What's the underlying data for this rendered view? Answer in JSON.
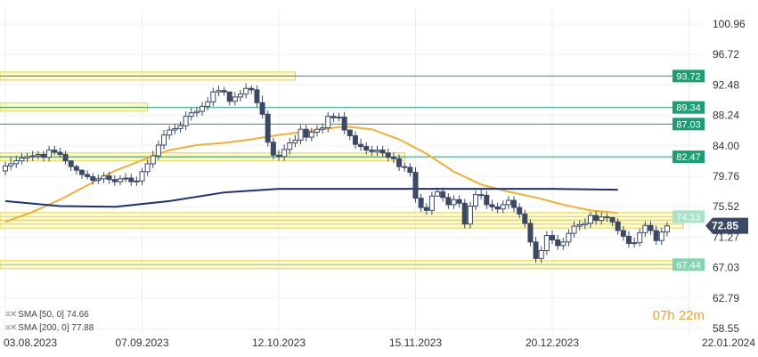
{
  "chart_data": {
    "type": "candlestick",
    "y_ticks": [
      "100.96",
      "96.72",
      "92.48",
      "88.24",
      "84.00",
      "79.76",
      "75.52",
      "71.27",
      "67.03",
      "62.79",
      "58.55"
    ],
    "ylim": [
      58.55,
      100.96
    ],
    "x_ticks": [
      "03.08.2023",
      "07.09.2023",
      "12.10.2023",
      "15.11.2023",
      "20.12.2023",
      "22.01.2024"
    ],
    "x_ticks_numeric": [
      0,
      25,
      50,
      75,
      100,
      125
    ],
    "price_levels": [
      {
        "label": "93.72",
        "value": 93.72,
        "color": "#1a9e73"
      },
      {
        "label": "89.34",
        "value": 89.34,
        "color": "#1a9e73"
      },
      {
        "label": "87.03",
        "value": 87.03,
        "color": "#1a9e73"
      },
      {
        "label": "82.47",
        "value": 82.47,
        "color": "#1a9e73"
      },
      {
        "label": "74.13",
        "value": 74.13,
        "color": "#a6e3c9"
      },
      {
        "label": "67.44",
        "value": 67.44,
        "color": "#7fd6b0"
      }
    ],
    "current_price": {
      "label": "72.85",
      "value": 72.85
    },
    "zones": [
      {
        "from": 0,
        "to": 53,
        "value": 93.72
      },
      {
        "from": 0,
        "to": 26,
        "value": 89.4
      },
      {
        "from": 0,
        "to": 73,
        "value": 82.45
      },
      {
        "from": 0,
        "to": 124,
        "value": 74.13
      },
      {
        "from": 0,
        "to": 124,
        "value": 73.1
      },
      {
        "from": 0,
        "to": 124,
        "value": 67.44
      }
    ],
    "series": [
      {
        "name": "SMA [50, 0] 74.66",
        "color": "#f0b030",
        "x": [
          0,
          5,
          10,
          15,
          20,
          25,
          30,
          35,
          40,
          45,
          50,
          55,
          60,
          62,
          67,
          72,
          77,
          82,
          87,
          92,
          97,
          102,
          107,
          112
        ],
        "y": [
          73.4,
          74.8,
          76.5,
          78.5,
          80.5,
          82.0,
          83.4,
          84.1,
          84.4,
          84.9,
          85.5,
          86.0,
          86.5,
          86.7,
          86.3,
          84.9,
          82.9,
          80.4,
          78.6,
          77.6,
          76.8,
          75.8,
          75.0,
          74.66
        ]
      },
      {
        "name": "SMA [200, 0] 77.88",
        "color": "#1e2f7a",
        "x": [
          0,
          10,
          20,
          30,
          40,
          50,
          60,
          70,
          80,
          90,
          100,
          112
        ],
        "y": [
          76.3,
          75.6,
          75.5,
          76.3,
          77.5,
          78.0,
          78.0,
          78.0,
          78.0,
          78.0,
          78.0,
          77.88
        ]
      }
    ],
    "candles": {
      "open": [
        80.5,
        81.2,
        81.5,
        81.9,
        82.3,
        82.5,
        82.6,
        82.8,
        82.4,
        83.4,
        83.1,
        82.8,
        81.9,
        81.1,
        80.6,
        80.0,
        79.7,
        79.2,
        79.4,
        79.8,
        79.3,
        79.0,
        79.4,
        79.5,
        79.0,
        79.1,
        80.4,
        81.5,
        82.6,
        84.1,
        85.5,
        86.2,
        86.4,
        86.8,
        88.1,
        88.6,
        88.8,
        89.5,
        90.1,
        91.5,
        91.7,
        91.5,
        90.2,
        90.8,
        91.2,
        92.0,
        91.8,
        90.0,
        88.4,
        84.5,
        82.7,
        82.5,
        83.5,
        84.4,
        84.8,
        86.3,
        85.2,
        85.9,
        86.3,
        86.5,
        88.1,
        87.9,
        88.0,
        86.2,
        85.4,
        84.2,
        83.9,
        83.4,
        83.2,
        83.4,
        83.0,
        82.4,
        82.2,
        81.1,
        81.0,
        80.3,
        76.7,
        75.4,
        75.0,
        77.0,
        77.6,
        76.8,
        75.8,
        76.5,
        76.0,
        73.1,
        75.6,
        77.2,
        77.1,
        75.8,
        75.5,
        75.2,
        75.8,
        76.4,
        75.4,
        74.5,
        73.2,
        70.6,
        68.3,
        69.4,
        71.5,
        70.9,
        70.1,
        70.6,
        71.8,
        72.8,
        73.0,
        73.2,
        74.3,
        73.6,
        74.1,
        74.0,
        73.4,
        72.2,
        71.4,
        70.4,
        70.5,
        71.9,
        72.9,
        72.2,
        70.8,
        72.0
      ],
      "close": [
        81.2,
        81.5,
        81.9,
        82.3,
        82.5,
        82.6,
        82.8,
        82.4,
        83.4,
        83.1,
        82.8,
        81.9,
        81.1,
        80.6,
        80.0,
        79.7,
        79.2,
        79.4,
        79.8,
        79.3,
        79.0,
        79.4,
        79.5,
        79.0,
        79.1,
        80.4,
        81.5,
        82.6,
        84.1,
        85.5,
        86.2,
        86.4,
        86.8,
        88.1,
        88.6,
        88.8,
        89.5,
        90.1,
        91.5,
        91.7,
        91.5,
        90.2,
        90.8,
        91.2,
        92.0,
        91.8,
        90.0,
        88.4,
        84.5,
        82.7,
        82.5,
        83.5,
        84.4,
        84.8,
        86.3,
        85.2,
        85.9,
        86.3,
        86.5,
        88.1,
        87.9,
        88.0,
        86.2,
        85.4,
        84.2,
        83.9,
        83.4,
        83.2,
        83.4,
        83.0,
        82.4,
        82.2,
        81.1,
        81.0,
        80.3,
        76.7,
        75.4,
        75.0,
        77.0,
        77.6,
        76.8,
        75.8,
        76.5,
        76.0,
        73.1,
        75.6,
        77.2,
        77.1,
        75.8,
        75.5,
        75.2,
        75.8,
        76.4,
        75.4,
        74.5,
        73.2,
        70.6,
        68.3,
        69.4,
        71.5,
        70.9,
        70.1,
        70.6,
        71.8,
        72.8,
        73.0,
        73.2,
        74.3,
        73.6,
        74.1,
        74.0,
        73.4,
        72.2,
        71.4,
        70.4,
        70.5,
        71.9,
        72.9,
        72.2,
        70.8,
        72.0,
        72.85
      ],
      "high": [
        81.8,
        82.5,
        82.6,
        83.0,
        83.0,
        83.3,
        83.3,
        83.3,
        84.0,
        84.0,
        83.7,
        83.3,
        82.0,
        81.4,
        80.7,
        80.6,
        80.2,
        80.0,
        80.3,
        80.4,
        79.9,
        79.9,
        80.2,
        80.1,
        79.7,
        80.9,
        82.1,
        83.3,
        84.7,
        86.2,
        86.8,
        87.0,
        87.4,
        88.8,
        89.3,
        89.4,
        90.1,
        90.8,
        92.1,
        92.4,
        92.2,
        91.5,
        91.5,
        91.8,
        92.7,
        92.4,
        92.4,
        91.0,
        88.9,
        85.1,
        83.4,
        84.2,
        85.1,
        85.5,
        86.9,
        86.9,
        86.5,
        86.9,
        87.1,
        88.7,
        88.6,
        88.6,
        88.7,
        86.0,
        86.0,
        85.0,
        84.5,
        84.0,
        84.0,
        84.0,
        83.6,
        83.1,
        82.8,
        81.7,
        81.6,
        81.0,
        77.3,
        76.0,
        77.6,
        78.2,
        78.2,
        77.4,
        77.1,
        77.1,
        76.6,
        76.2,
        77.8,
        77.9,
        77.7,
        76.5,
        76.1,
        76.4,
        77.0,
        77.0,
        76.0,
        75.1,
        73.8,
        71.3,
        70.0,
        72.1,
        72.2,
        71.6,
        71.2,
        72.4,
        73.5,
        73.6,
        73.9,
        74.8,
        74.9,
        74.7,
        74.6,
        74.1,
        73.9,
        72.8,
        72.1,
        71.2,
        72.5,
        73.5,
        73.5,
        72.9,
        72.6,
        73.4
      ],
      "low": [
        79.9,
        80.6,
        80.9,
        81.4,
        81.7,
        81.9,
        82.1,
        81.8,
        81.8,
        82.7,
        82.3,
        81.4,
        80.5,
        80.0,
        79.4,
        79.3,
        78.6,
        78.7,
        78.8,
        78.7,
        78.4,
        78.5,
        78.9,
        78.4,
        78.4,
        78.5,
        79.8,
        80.9,
        82.0,
        83.5,
        84.9,
        85.6,
        85.8,
        86.2,
        87.5,
        88.0,
        88.2,
        88.9,
        89.5,
        90.9,
        91.0,
        89.6,
        89.6,
        90.2,
        90.6,
        91.2,
        89.4,
        87.8,
        83.9,
        82.1,
        81.9,
        81.9,
        82.8,
        83.8,
        84.2,
        84.6,
        84.6,
        85.3,
        85.7,
        85.9,
        87.3,
        87.4,
        85.6,
        84.8,
        83.6,
        83.3,
        82.8,
        82.6,
        82.6,
        82.4,
        81.8,
        81.6,
        80.5,
        80.4,
        79.7,
        76.1,
        74.8,
        74.4,
        74.4,
        77.0,
        76.2,
        75.2,
        75.2,
        75.4,
        72.5,
        72.5,
        75.0,
        76.5,
        75.2,
        74.9,
        74.6,
        74.6,
        75.2,
        74.8,
        73.9,
        72.6,
        70.0,
        67.7,
        67.7,
        68.8,
        70.3,
        69.5,
        69.5,
        70.0,
        71.2,
        72.2,
        72.4,
        72.6,
        73.0,
        73.0,
        73.4,
        72.8,
        71.6,
        70.8,
        69.8,
        69.8,
        70.0,
        71.3,
        71.6,
        70.2,
        70.2,
        71.4
      ]
    },
    "title": ""
  },
  "legend": {
    "sma50": "SMA [50, 0] 74.66",
    "sma200": "SMA [200, 0] 77.88"
  },
  "timer": {
    "hours": "07",
    "h_unit": "h",
    "minutes": "22",
    "m_unit": "m"
  }
}
